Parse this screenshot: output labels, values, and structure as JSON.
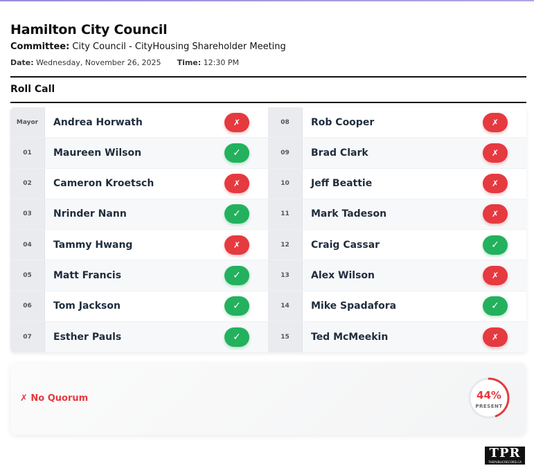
{
  "header": {
    "organization": "Hamilton City Council",
    "committee_label": "Committee:",
    "committee": "City Council - CityHousing Shareholder Meeting",
    "date_label": "Date:",
    "date": "Wednesday, November 26, 2025",
    "time_label": "Time:",
    "time": "12:30 PM"
  },
  "section_title": "Roll Call",
  "members": [
    {
      "seat": "Mayor",
      "name": "Andrea Horwath",
      "status": "absent",
      "symbol": "✗"
    },
    {
      "seat": "01",
      "name": "Maureen Wilson",
      "status": "present",
      "symbol": "✓"
    },
    {
      "seat": "02",
      "name": "Cameron Kroetsch",
      "status": "absent",
      "symbol": "✗"
    },
    {
      "seat": "03",
      "name": "Nrinder Nann",
      "status": "present",
      "symbol": "✓"
    },
    {
      "seat": "04",
      "name": "Tammy Hwang",
      "status": "absent",
      "symbol": "✗"
    },
    {
      "seat": "05",
      "name": "Matt Francis",
      "status": "present",
      "symbol": "✓"
    },
    {
      "seat": "06",
      "name": "Tom Jackson",
      "status": "present",
      "symbol": "✓"
    },
    {
      "seat": "07",
      "name": "Esther Pauls",
      "status": "present",
      "symbol": "✓"
    },
    {
      "seat": "08",
      "name": "Rob Cooper",
      "status": "absent",
      "symbol": "✗"
    },
    {
      "seat": "09",
      "name": "Brad Clark",
      "status": "absent",
      "symbol": "✗"
    },
    {
      "seat": "10",
      "name": "Jeff Beattie",
      "status": "absent",
      "symbol": "✗"
    },
    {
      "seat": "11",
      "name": "Mark Tadeson",
      "status": "absent",
      "symbol": "✗"
    },
    {
      "seat": "12",
      "name": "Craig Cassar",
      "status": "present",
      "symbol": "✓"
    },
    {
      "seat": "13",
      "name": "Alex Wilson",
      "status": "absent",
      "symbol": "✗"
    },
    {
      "seat": "14",
      "name": "Mike Spadafora",
      "status": "present",
      "symbol": "✓"
    },
    {
      "seat": "15",
      "name": "Ted McMeekin",
      "status": "absent",
      "symbol": "✗"
    }
  ],
  "summary": {
    "quorum_text": "✗ No Quorum",
    "percent_text": "44%",
    "percent_value": 0.44,
    "percent_label": "PRESENT"
  },
  "logo": {
    "text": "TPR",
    "subtext": "THEPUBLICRECORD.CA"
  },
  "colors": {
    "absent": "#e53a3f",
    "present": "#23b15e",
    "gauge_track": "#e6e8eb"
  }
}
